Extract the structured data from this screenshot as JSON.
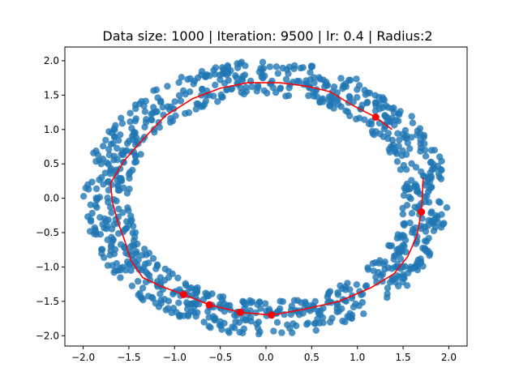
{
  "chart_data": {
    "type": "scatter",
    "title": "Data size: 1000 | Iteration: 9500 | lr: 0.4 | Radius:2",
    "xlabel": "",
    "ylabel": "",
    "xlim": [
      -2.2,
      2.2
    ],
    "ylim": [
      -2.15,
      2.2
    ],
    "xticks": [
      -2.0,
      -1.5,
      -1.0,
      -0.5,
      0.0,
      0.5,
      1.0,
      1.5,
      2.0
    ],
    "yticks": [
      -2.0,
      -1.5,
      -1.0,
      -0.5,
      0.0,
      0.5,
      1.0,
      1.5,
      2.0
    ],
    "xtick_labels": [
      "−2.0",
      "−1.5",
      "−1.0",
      "−0.5",
      "0.0",
      "0.5",
      "1.0",
      "1.5",
      "2.0"
    ],
    "ytick_labels": [
      "−2.0",
      "−1.5",
      "−1.0",
      "−0.5",
      "0.0",
      "0.5",
      "1.0",
      "1.5",
      "2.0"
    ],
    "grid": false,
    "series": [
      {
        "kind": "scatter-ring",
        "color": "#1f77b4",
        "count": 1000,
        "center": [
          0.0,
          0.0
        ],
        "rx_inner": 1.5,
        "rx_outer": 2.0,
        "ry_inner": 1.5,
        "ry_outer": 2.0
      },
      {
        "kind": "line",
        "color": "#ff0000",
        "x": [
          1.38,
          1.2,
          0.95,
          0.7,
          0.45,
          0.15,
          -0.2,
          -0.5,
          -0.8,
          -1.1,
          -1.35,
          -1.55,
          -1.7,
          -1.68,
          -1.62,
          -1.55,
          -1.48,
          -1.35,
          -1.15,
          -0.9,
          -0.62,
          -0.28,
          0.06,
          0.4,
          0.8,
          1.15,
          1.4,
          1.55,
          1.65,
          1.7,
          1.72
        ],
        "y": [
          1.0,
          1.18,
          1.35,
          1.55,
          1.63,
          1.68,
          1.68,
          1.6,
          1.45,
          1.2,
          0.85,
          0.55,
          0.22,
          -0.05,
          -0.35,
          -0.6,
          -0.9,
          -1.15,
          -1.28,
          -1.4,
          -1.55,
          -1.66,
          -1.7,
          -1.62,
          -1.5,
          -1.3,
          -1.1,
          -0.85,
          -0.55,
          -0.2,
          0.3
        ]
      },
      {
        "kind": "markers",
        "color": "#ff0000",
        "x": [
          1.2,
          -0.9,
          -0.62,
          -0.28,
          0.06,
          1.7
        ],
        "y": [
          1.18,
          -1.4,
          -1.55,
          -1.66,
          -1.7,
          -0.2
        ]
      }
    ]
  }
}
